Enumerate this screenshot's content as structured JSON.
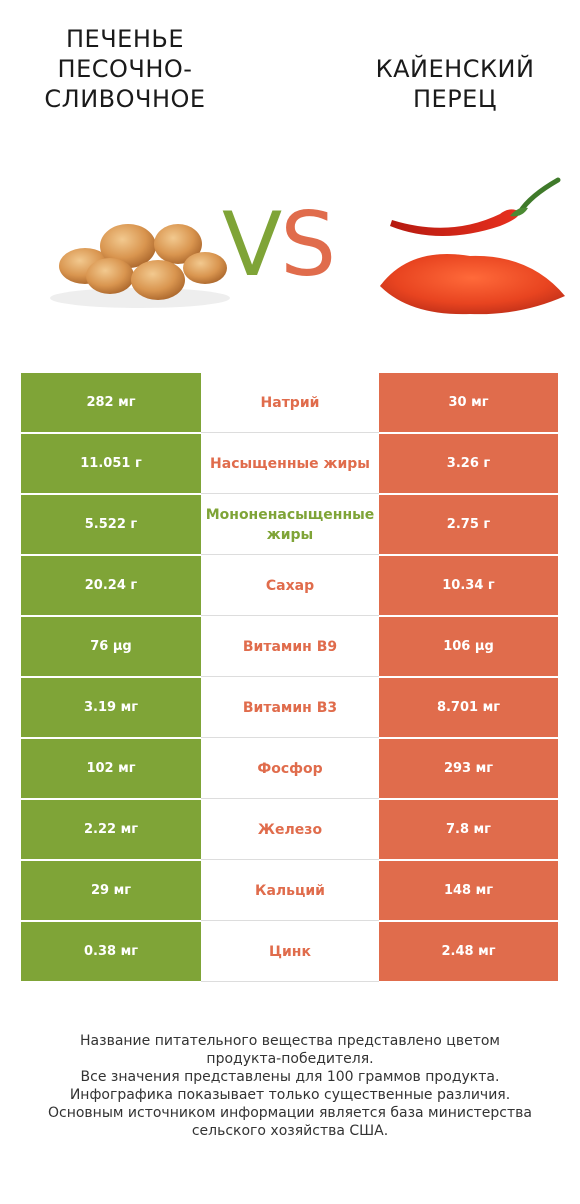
{
  "left_food": {
    "title": "Печенье песочно-сливочное",
    "color": "#7fa437",
    "image": "cookies-illustration"
  },
  "right_food": {
    "title": "Кайенский перец",
    "color": "#e06c4c",
    "image": "cayenne-pepper-illustration"
  },
  "vs": {
    "v": "V",
    "s": "S"
  },
  "rows": [
    {
      "left": "282 мг",
      "nutrient": "Натрий",
      "right": "30 мг",
      "winner": "right"
    },
    {
      "left": "11.051 г",
      "nutrient": "Насыщенные жиры",
      "right": "3.26 г",
      "winner": "right"
    },
    {
      "left": "5.522 г",
      "nutrient": "Мононенасыщенные жиры",
      "right": "2.75 г",
      "winner": "left"
    },
    {
      "left": "20.24 г",
      "nutrient": "Сахар",
      "right": "10.34 г",
      "winner": "right"
    },
    {
      "left": "76 µg",
      "nutrient": "Витамин B9",
      "right": "106 µg",
      "winner": "right"
    },
    {
      "left": "3.19 мг",
      "nutrient": "Витамин B3",
      "right": "8.701 мг",
      "winner": "right"
    },
    {
      "left": "102 мг",
      "nutrient": "Фосфор",
      "right": "293 мг",
      "winner": "right"
    },
    {
      "left": "2.22 мг",
      "nutrient": "Железо",
      "right": "7.8 мг",
      "winner": "right"
    },
    {
      "left": "29 мг",
      "nutrient": "Кальций",
      "right": "148 мг",
      "winner": "right"
    },
    {
      "left": "0.38 мг",
      "nutrient": "Цинк",
      "right": "2.48 мг",
      "winner": "right"
    }
  ],
  "footnote": [
    "Название питательного вещества представлено цветом",
    "продукта-победителя.",
    "Все значения представлены для 100 граммов продукта.",
    "Инфографика показывает только существенные различия.",
    "Основным источником информации является база министерства",
    "сельского хозяйства США."
  ]
}
